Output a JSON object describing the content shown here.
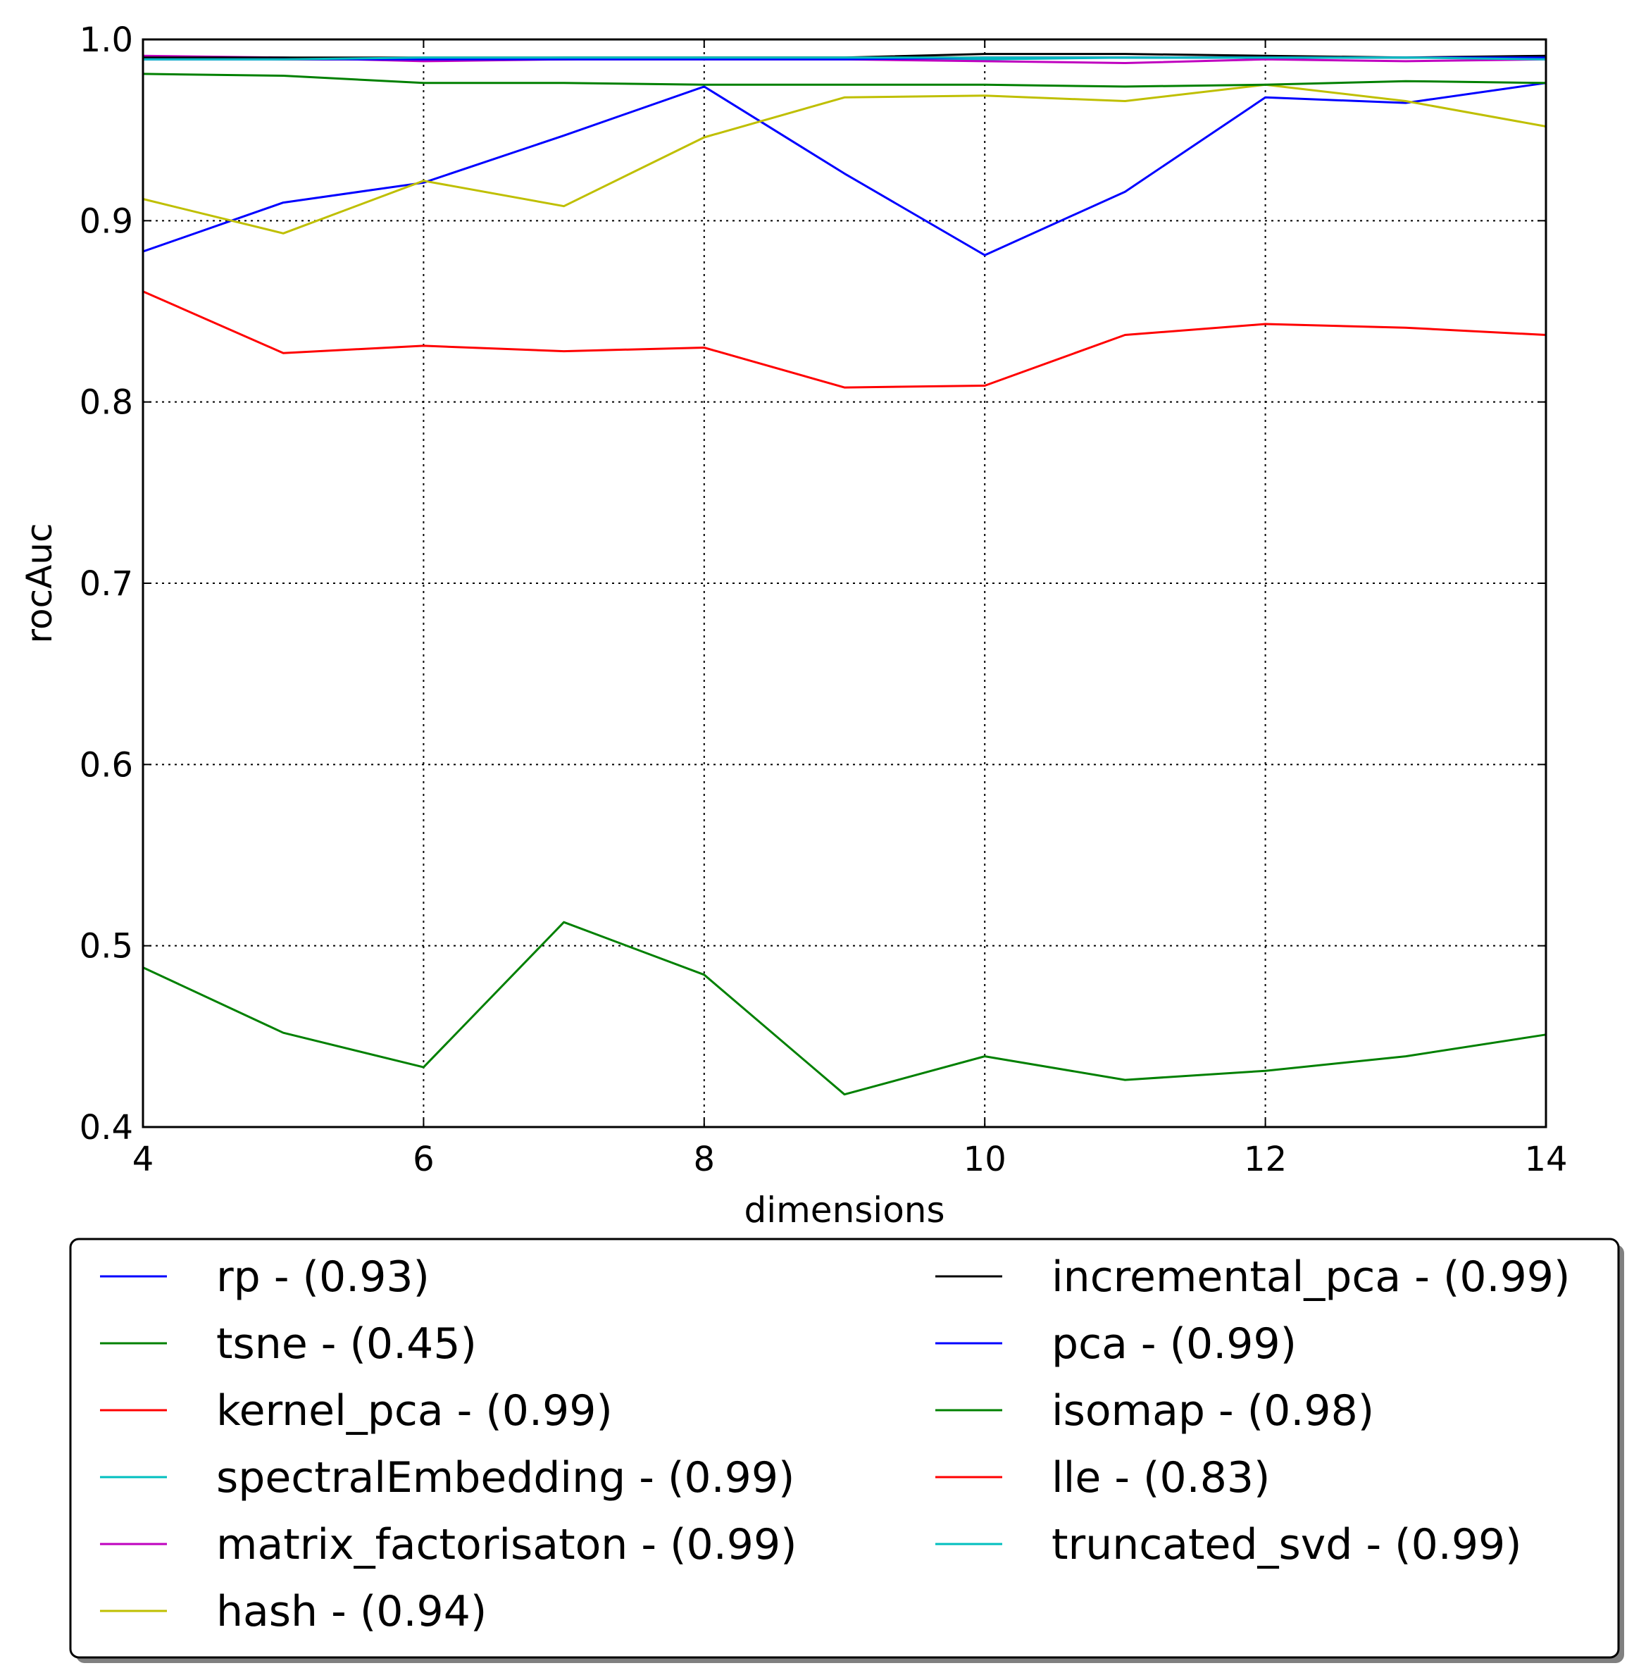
{
  "chart_data": {
    "type": "line",
    "xlabel": "dimensions",
    "ylabel": "rocAuc",
    "xlim": [
      4,
      14
    ],
    "ylim": [
      0.4,
      1.0
    ],
    "xticks": [
      "4",
      "6",
      "8",
      "10",
      "12",
      "14"
    ],
    "yticks": [
      "0.4",
      "0.5",
      "0.6",
      "0.7",
      "0.8",
      "0.9",
      "1.0"
    ],
    "grid": true,
    "legend_position": "below plot, two columns",
    "x": [
      4,
      5,
      6,
      7,
      8,
      9,
      10,
      11,
      12,
      13,
      14
    ],
    "series": [
      {
        "name": "rp - (0.93)",
        "color": "#0000ff",
        "values": [
          0.883,
          0.91,
          0.921,
          0.947,
          0.974,
          0.926,
          0.881,
          0.916,
          0.968,
          0.965,
          0.976
        ]
      },
      {
        "name": "tsne - (0.45)",
        "color": "#008000",
        "values": [
          0.488,
          0.452,
          0.433,
          0.513,
          0.484,
          0.418,
          0.439,
          0.426,
          0.431,
          0.439,
          0.451
        ]
      },
      {
        "name": "kernel_pca - (0.99)",
        "color": "#ff0000",
        "values": [
          0.99,
          0.989,
          0.989,
          0.989,
          0.99,
          0.99,
          0.99,
          0.99,
          0.99,
          0.99,
          0.99
        ]
      },
      {
        "name": "spectralEmbedding - (0.99)",
        "color": "#00bfbf",
        "values": [
          0.99,
          0.99,
          0.989,
          0.99,
          0.99,
          0.99,
          0.989,
          0.99,
          0.99,
          0.99,
          0.99
        ]
      },
      {
        "name": "matrix_factorisaton - (0.99)",
        "color": "#bf00bf",
        "values": [
          0.991,
          0.99,
          0.988,
          0.989,
          0.989,
          0.989,
          0.988,
          0.987,
          0.989,
          0.988,
          0.989
        ]
      },
      {
        "name": "hash - (0.94)",
        "color": "#bfbf00",
        "values": [
          0.912,
          0.893,
          0.922,
          0.908,
          0.946,
          0.968,
          0.969,
          0.966,
          0.975,
          0.966,
          0.952
        ]
      },
      {
        "name": "incremental_pca - (0.99)",
        "color": "#000000",
        "values": [
          0.99,
          0.99,
          0.99,
          0.99,
          0.99,
          0.99,
          0.992,
          0.992,
          0.991,
          0.99,
          0.991
        ]
      },
      {
        "name": "pca - (0.99)",
        "color": "#0000ff",
        "values": [
          0.989,
          0.989,
          0.989,
          0.989,
          0.989,
          0.989,
          0.99,
          0.99,
          0.99,
          0.99,
          0.99
        ]
      },
      {
        "name": "isomap - (0.98)",
        "color": "#008000",
        "values": [
          0.981,
          0.98,
          0.976,
          0.976,
          0.975,
          0.975,
          0.975,
          0.974,
          0.975,
          0.977,
          0.976
        ]
      },
      {
        "name": "lle - (0.83)",
        "color": "#ff0000",
        "values": [
          0.861,
          0.827,
          0.831,
          0.828,
          0.83,
          0.808,
          0.809,
          0.837,
          0.843,
          0.841,
          0.837
        ]
      },
      {
        "name": "truncated_svd - (0.99)",
        "color": "#00bfbf",
        "values": [
          0.989,
          0.989,
          0.99,
          0.99,
          0.99,
          0.99,
          0.99,
          0.99,
          0.99,
          0.99,
          0.989
        ]
      }
    ]
  }
}
